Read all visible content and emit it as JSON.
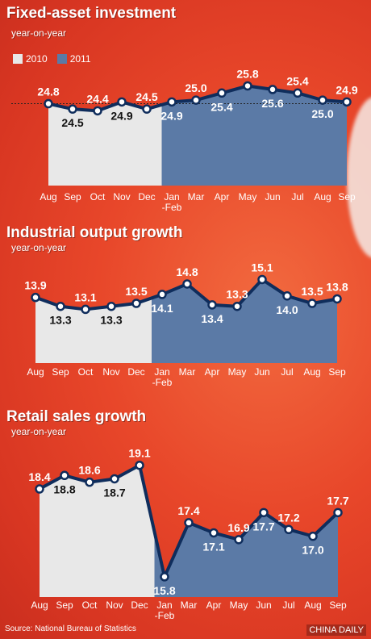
{
  "chart_data": [
    {
      "type": "line",
      "title": "Fixed-asset investment",
      "subtitle": "year-on-year",
      "legend": [
        {
          "name": "2010",
          "color": "#e8e8e8"
        },
        {
          "name": "2011",
          "color": "#5b7aa6"
        }
      ],
      "categories": [
        "Aug",
        "Sep",
        "Oct",
        "Nov",
        "Dec",
        "Jan\n-Feb",
        "Mar",
        "Apr",
        "May",
        "Jun",
        "Jul",
        "Aug",
        "Sep"
      ],
      "values": [
        24.8,
        24.5,
        24.4,
        24.9,
        24.5,
        24.9,
        25.0,
        25.4,
        25.8,
        25.6,
        25.4,
        25.0,
        24.9
      ],
      "year_split_index": 5,
      "ylim": [
        20.2,
        27.0
      ],
      "reference_line": 24.8
    },
    {
      "type": "line",
      "title": "Industrial output growth",
      "subtitle": "year-on-year",
      "categories": [
        "Aug",
        "Sep",
        "Oct",
        "Nov",
        "Dec",
        "Jan\n-Feb",
        "Mar",
        "Apr",
        "May",
        "Jun",
        "Jul",
        "Aug",
        "Sep"
      ],
      "values": [
        13.9,
        13.3,
        13.1,
        13.3,
        13.5,
        14.1,
        14.8,
        13.4,
        13.3,
        15.1,
        14.0,
        13.5,
        13.8
      ],
      "year_split_index": 5,
      "ylim": [
        9.5,
        16.8
      ]
    },
    {
      "type": "line",
      "title": "Retail sales growth",
      "subtitle": "year-on-year",
      "categories": [
        "Aug",
        "Sep",
        "Oct",
        "Nov",
        "Dec",
        "Jan\n-Feb",
        "Mar",
        "Apr",
        "May",
        "Jun",
        "Jul",
        "Aug",
        "Sep"
      ],
      "values": [
        18.4,
        18.8,
        18.6,
        18.7,
        19.1,
        15.8,
        17.4,
        17.1,
        16.9,
        17.7,
        17.2,
        17.0,
        17.7
      ],
      "year_split_index": 5,
      "ylim": [
        15.2,
        19.5
      ]
    }
  ],
  "source": "Source: National Bureau of Statistics",
  "credit": "CHINA DAILY",
  "colors": {
    "fill2010": "#e8e8e8",
    "fill2011": "#5b7aa6",
    "line": "#0f2d5c",
    "text": "#ffffff"
  }
}
